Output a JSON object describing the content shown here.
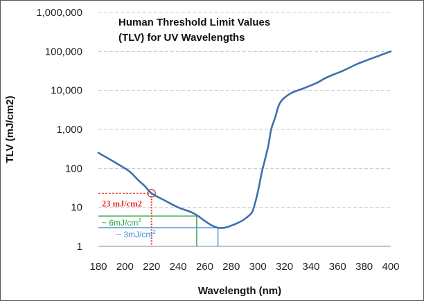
{
  "chart_data": {
    "type": "line",
    "title_lines": [
      "Human Threshold Limit Values",
      "(TLV) for UV Wavelengths"
    ],
    "xlabel": "Wavelength (nm)",
    "ylabel": "TLV (mJ/cm2)",
    "x_ticks": [
      180,
      200,
      220,
      240,
      260,
      280,
      300,
      320,
      340,
      360,
      380,
      400
    ],
    "y_ticks": [
      1,
      10,
      100,
      1000,
      10000,
      100000,
      1000000
    ],
    "y_tick_labels": [
      "1",
      "10",
      "100",
      "1,000",
      "10,000",
      "100,000",
      "1,000,000"
    ],
    "xlim": [
      180,
      400
    ],
    "ylim": [
      1,
      1000000
    ],
    "y_scale": "log",
    "grid": "horizontal dashed",
    "series": [
      {
        "color": "#3e6fae",
        "x": [
          180,
          190,
          200,
          205,
          210,
          215,
          220,
          230,
          240,
          250,
          255,
          260,
          265,
          270,
          275,
          280,
          285,
          290,
          295,
          297,
          300,
          303,
          305,
          308,
          310,
          313,
          315,
          317,
          320,
          325,
          330,
          335,
          340,
          345,
          350,
          355,
          360,
          365,
          370,
          375,
          380,
          385,
          390,
          395,
          400
        ],
        "y": [
          250,
          160,
          100,
          75,
          50,
          35,
          23,
          15,
          10,
          7.5,
          6,
          4.5,
          3.5,
          3,
          3,
          3.4,
          4,
          5,
          7,
          10,
          25,
          80,
          150,
          400,
          1000,
          2000,
          3500,
          5000,
          6500,
          8500,
          10000,
          11500,
          13500,
          16000,
          20000,
          24000,
          28000,
          33000,
          40000,
          48000,
          56000,
          65000,
          75000,
          87000,
          100000
        ]
      }
    ],
    "annotations": [
      {
        "label": "23 mJ/cm2",
        "x": 220,
        "y": 23,
        "color": "#e8312a",
        "style": "dashed",
        "marker": "circle"
      },
      {
        "label": "~ 6mJ/cm",
        "superscript": "2",
        "x": 254,
        "y": 6,
        "color": "#2aa43f"
      },
      {
        "label": "~ 3mJ/cm",
        "superscript": "2",
        "x": 270,
        "y": 3,
        "color": "#3f8fd8"
      }
    ]
  }
}
